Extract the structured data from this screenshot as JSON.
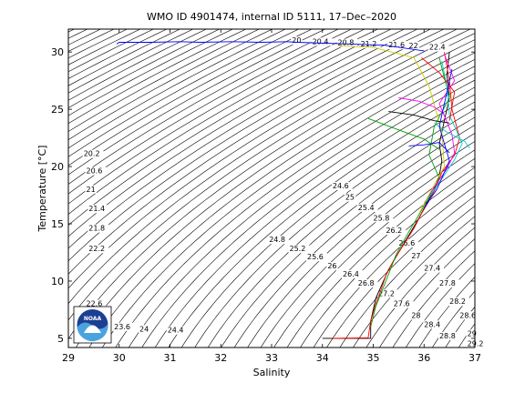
{
  "chart_data": {
    "type": "line",
    "title": "WMO ID 4901474, internal ID 5111, 17–Dec–2020",
    "xlabel": "Salinity",
    "ylabel": "Temperature [°C]",
    "xlim": [
      29,
      37
    ],
    "ylim": [
      4.2,
      32
    ],
    "xticks": [
      "29",
      "30",
      "31",
      "32",
      "33",
      "34",
      "35",
      "36",
      "37"
    ],
    "yticks": [
      "5",
      "10",
      "15",
      "20",
      "25",
      "30"
    ],
    "grid": false,
    "logo_text": "NOAA",
    "isopycnals": {
      "step": 0.2,
      "labels": [
        {
          "text": "20",
          "s": 33.4,
          "t": 30.8
        },
        {
          "text": "20.4",
          "s": 33.8,
          "t": 30.7
        },
        {
          "text": "20.8",
          "s": 34.3,
          "t": 30.6
        },
        {
          "text": "21.2",
          "s": 34.75,
          "t": 30.5
        },
        {
          "text": "21.6",
          "s": 35.3,
          "t": 30.4
        },
        {
          "text": "22",
          "s": 35.7,
          "t": 30.35
        },
        {
          "text": "22.4",
          "s": 36.1,
          "t": 30.2
        },
        {
          "text": "20.2",
          "s": 29.3,
          "t": 20.9
        },
        {
          "text": "20.6",
          "s": 29.35,
          "t": 19.4
        },
        {
          "text": "21",
          "s": 29.35,
          "t": 17.8
        },
        {
          "text": "21.4",
          "s": 29.4,
          "t": 16.1
        },
        {
          "text": "21.8",
          "s": 29.4,
          "t": 14.4
        },
        {
          "text": "22.2",
          "s": 29.4,
          "t": 12.6
        },
        {
          "text": "22.6",
          "s": 29.35,
          "t": 7.8
        },
        {
          "text": "23.6",
          "s": 29.9,
          "t": 5.8
        },
        {
          "text": "24",
          "s": 30.4,
          "t": 5.6
        },
        {
          "text": "24.4",
          "s": 30.95,
          "t": 5.5
        },
        {
          "text": "24.6",
          "s": 34.2,
          "t": 18.1
        },
        {
          "text": "25",
          "s": 34.45,
          "t": 17.1
        },
        {
          "text": "25.4",
          "s": 34.7,
          "t": 16.2
        },
        {
          "text": "25.8",
          "s": 35.0,
          "t": 15.3
        },
        {
          "text": "26.2",
          "s": 35.25,
          "t": 14.2
        },
        {
          "text": "26.6",
          "s": 35.5,
          "t": 13.1
        },
        {
          "text": "24.8",
          "s": 32.95,
          "t": 13.4
        },
        {
          "text": "25.2",
          "s": 33.35,
          "t": 12.6
        },
        {
          "text": "25.6",
          "s": 33.7,
          "t": 11.9
        },
        {
          "text": "26",
          "s": 34.1,
          "t": 11.1
        },
        {
          "text": "26.4",
          "s": 34.4,
          "t": 10.4
        },
        {
          "text": "26.8",
          "s": 34.7,
          "t": 9.6
        },
        {
          "text": "27",
          "s": 35.75,
          "t": 12.0
        },
        {
          "text": "27.2",
          "s": 35.1,
          "t": 8.7
        },
        {
          "text": "27.4",
          "s": 36.0,
          "t": 10.9
        },
        {
          "text": "27.6",
          "s": 35.4,
          "t": 7.8
        },
        {
          "text": "27.8",
          "s": 36.3,
          "t": 9.6
        },
        {
          "text": "28",
          "s": 35.75,
          "t": 6.8
        },
        {
          "text": "28.2",
          "s": 36.5,
          "t": 8.0
        },
        {
          "text": "28.4",
          "s": 36.0,
          "t": 6.0
        },
        {
          "text": "28.6",
          "s": 36.7,
          "t": 6.8
        },
        {
          "text": "28.8",
          "s": 36.3,
          "t": 5.0
        },
        {
          "text": "29",
          "s": 36.85,
          "t": 5.2
        },
        {
          "text": "29.2",
          "s": 36.85,
          "t": 4.3
        }
      ]
    },
    "series": [
      {
        "color": "#0000ff",
        "x": [
          29.95,
          30.0,
          30.6,
          31.2,
          31.6,
          32.2,
          32.8,
          33.3,
          33.5,
          35.2,
          36.0
        ],
        "y": [
          30.7,
          30.85,
          30.85,
          30.9,
          30.85,
          30.9,
          30.85,
          30.9,
          30.85,
          30.6,
          30.1
        ]
      },
      {
        "color": "#000000",
        "x": [
          34.0,
          34.95,
          34.95,
          35.0,
          35.05,
          35.15,
          35.3,
          35.5,
          35.7,
          35.9,
          36.05,
          36.2,
          36.3,
          36.35,
          36.3,
          36.4,
          36.5,
          36.45,
          36.5
        ],
        "y": [
          5.0,
          5.0,
          6.5,
          7.5,
          8.5,
          9.5,
          11.0,
          12.5,
          14.0,
          15.5,
          16.8,
          18.0,
          19.2,
          20.5,
          22.0,
          24.0,
          26.0,
          28.0,
          30.0
        ]
      },
      {
        "color": "#ff0000",
        "x": [
          34.2,
          34.9,
          34.95,
          35.05,
          35.15,
          35.25,
          35.4,
          35.6,
          35.8,
          35.95,
          36.1,
          36.25,
          36.35,
          36.6,
          36.7,
          36.55,
          36.5,
          36.4
        ],
        "y": [
          5.0,
          5.05,
          6.5,
          8.0,
          9.2,
          10.5,
          11.8,
          13.2,
          14.6,
          15.9,
          17.0,
          18.3,
          19.5,
          21.0,
          22.5,
          25.0,
          27.5,
          30.0
        ]
      },
      {
        "color": "#00a000",
        "x": [
          34.95,
          35.05,
          35.25,
          35.45,
          35.7,
          35.9,
          36.1,
          36.3,
          36.1,
          36.2,
          36.5,
          36.3
        ],
        "y": [
          6.0,
          7.8,
          10.0,
          12.3,
          14.3,
          15.8,
          17.4,
          19.0,
          21.0,
          23.5,
          26.0,
          29.5
        ]
      },
      {
        "color": "#ff00ff",
        "x": [
          36.0,
          36.2,
          36.45,
          36.6,
          36.55,
          36.3,
          36.6,
          36.4
        ],
        "y": [
          16.8,
          18.2,
          19.8,
          21.2,
          22.8,
          25.5,
          27.5,
          29.8
        ]
      },
      {
        "color": "#00cccc",
        "x": [
          36.05,
          36.3,
          36.6,
          36.75,
          36.5,
          36.45,
          36.35
        ],
        "y": [
          17.0,
          18.6,
          20.6,
          22.0,
          24.5,
          27.0,
          29.2
        ]
      },
      {
        "color": "#cccc00",
        "x": [
          35.9,
          36.2,
          36.4,
          36.35,
          36.1,
          35.8,
          35.0,
          34.3
        ],
        "y": [
          15.9,
          18.4,
          20.0,
          23.0,
          27.0,
          29.5,
          30.4,
          30.55
        ]
      },
      {
        "color": "#00a000",
        "x": [
          34.9,
          35.5,
          36.0,
          36.3
        ],
        "y": [
          24.2,
          23.2,
          22.4,
          21.5
        ]
      },
      {
        "color": "#0000ff",
        "x": [
          35.7,
          36.0,
          36.3,
          36.5
        ],
        "y": [
          21.8,
          21.9,
          22.1,
          21.2
        ]
      },
      {
        "color": "#ff00ff",
        "x": [
          35.5,
          35.9,
          36.2,
          36.4
        ],
        "y": [
          26.0,
          25.7,
          25.2,
          24.6
        ]
      },
      {
        "color": "#00cccc",
        "x": [
          36.2,
          36.45,
          36.8,
          36.9
        ],
        "y": [
          23.8,
          23.0,
          22.2,
          21.6
        ]
      },
      {
        "color": "#000000",
        "x": [
          35.3,
          35.8,
          36.2,
          36.5
        ],
        "y": [
          24.8,
          24.5,
          24.0,
          23.8
        ]
      },
      {
        "color": "#ff0000",
        "x": [
          35.95,
          36.3,
          36.6,
          36.5
        ],
        "y": [
          29.5,
          28.2,
          26.5,
          24.0
        ]
      },
      {
        "color": "#0000ff",
        "x": [
          36.0,
          36.25,
          36.5,
          36.3,
          36.55
        ],
        "y": [
          16.4,
          18.0,
          20.5,
          23.5,
          28.5
        ]
      }
    ]
  }
}
